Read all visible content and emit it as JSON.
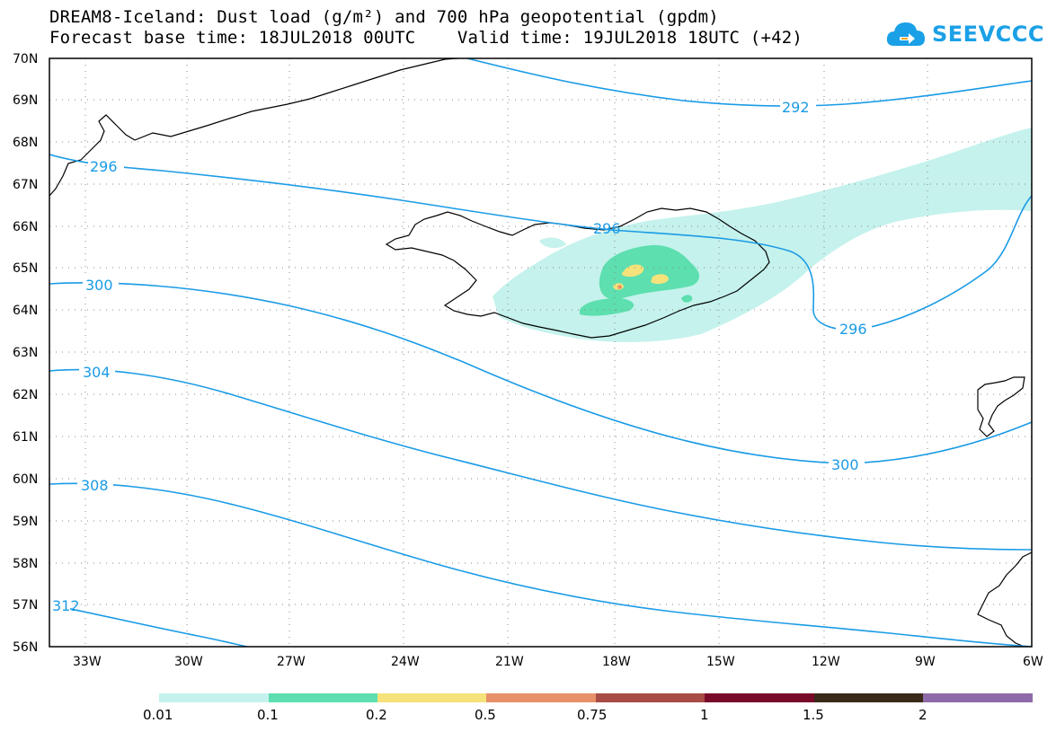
{
  "title": {
    "line1": "DREAM8-Iceland: Dust load (g/m²) and 700 hPa geopotential (gpdm)",
    "line2": "Forecast base time: 18JUL2018 00UTC    Valid time: 19JUL2018 18UTC (+42)"
  },
  "logo": {
    "text": "SEEVCCC",
    "icon": "cloud-arrow-icon",
    "color": "#1aa0e6"
  },
  "map": {
    "lat_labels": [
      "70N",
      "69N",
      "68N",
      "67N",
      "66N",
      "65N",
      "64N",
      "63N",
      "62N",
      "61N",
      "60N",
      "59N",
      "58N",
      "57N",
      "56N"
    ],
    "lon_labels": [
      "33W",
      "30W",
      "27W",
      "24W",
      "21W",
      "18W",
      "15W",
      "12W",
      "9W",
      "6W"
    ],
    "contour_color": "#1a9be6",
    "contour_labels": [
      "292",
      "296",
      "296",
      "296",
      "300",
      "300",
      "304",
      "308",
      "312"
    ]
  },
  "legend": {
    "thresholds": [
      "0.01",
      "0.1",
      "0.2",
      "0.5",
      "0.75",
      "1",
      "1.5",
      "2"
    ],
    "colors": [
      "#c5f2ec",
      "#5ddfb0",
      "#f5e27a",
      "#e8906a",
      "#a84c46",
      "#7a0a2a",
      "#3b2a1a",
      "#8e6aa8"
    ]
  }
}
